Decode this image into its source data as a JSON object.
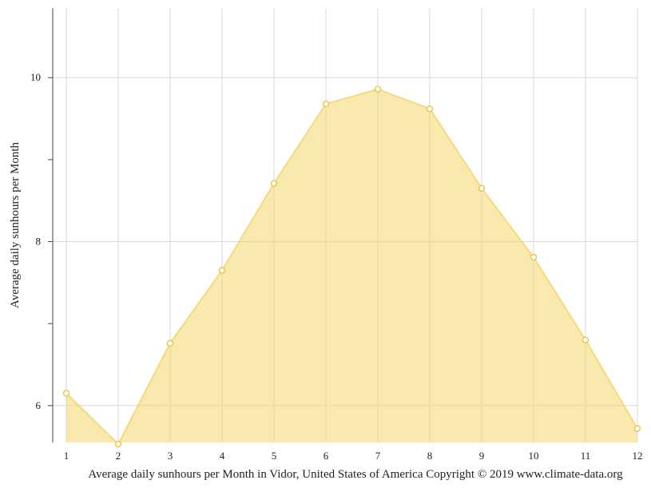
{
  "chart_data": {
    "type": "area",
    "x": [
      1,
      2,
      3,
      4,
      5,
      6,
      7,
      8,
      9,
      10,
      11,
      12
    ],
    "series": [
      {
        "values": [
          6.15,
          5.53,
          6.76,
          7.65,
          8.71,
          9.68,
          9.86,
          9.62,
          8.65,
          7.81,
          6.8,
          5.72
        ],
        "color": "#f5d76e"
      }
    ],
    "xlim": [
      1,
      12
    ],
    "ylim": [
      5.55,
      10.85
    ],
    "y_ticks": [
      6,
      8,
      10
    ],
    "y_minor_ticks": [
      7,
      9
    ],
    "ylabel": "Average daily sunhours per Month",
    "caption": "Average daily sunhours per Month in Vidor, United States of America Copyright © 2019 www.climate-data.org",
    "grid": true
  }
}
